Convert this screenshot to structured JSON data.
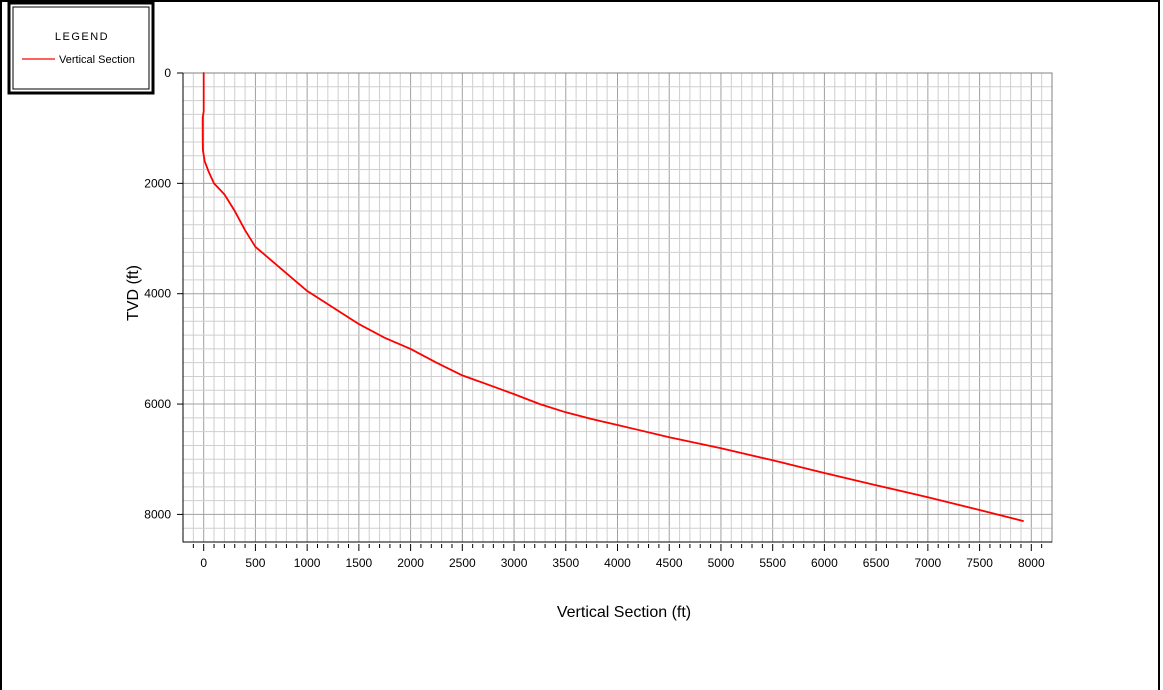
{
  "chart_data": {
    "type": "line",
    "xlabel": "Vertical Section (ft)",
    "ylabel": "TVD (ft)",
    "xlim": [
      -200,
      8200
    ],
    "ylim": [
      0,
      8500
    ],
    "y_inverted": true,
    "grid": true,
    "legend": {
      "title": "LEGEND",
      "placement": "top-left"
    },
    "xticks": [
      0,
      500,
      1000,
      1500,
      2000,
      2500,
      3000,
      3500,
      4000,
      4500,
      5000,
      5500,
      6000,
      6500,
      7000,
      7500,
      8000
    ],
    "yticks": [
      0,
      2000,
      4000,
      6000,
      8000
    ],
    "series": [
      {
        "name": "Vertical Section",
        "color": "#ff0000",
        "points": [
          [
            0,
            0
          ],
          [
            0,
            300
          ],
          [
            0,
            700
          ],
          [
            -10,
            800
          ],
          [
            -10,
            1200
          ],
          [
            -8,
            1400
          ],
          [
            10,
            1600
          ],
          [
            50,
            1800
          ],
          [
            100,
            2000
          ],
          [
            200,
            2200
          ],
          [
            300,
            2500
          ],
          [
            400,
            2850
          ],
          [
            500,
            3150
          ],
          [
            750,
            3550
          ],
          [
            1000,
            3950
          ],
          [
            1250,
            4250
          ],
          [
            1500,
            4550
          ],
          [
            1750,
            4800
          ],
          [
            2000,
            5000
          ],
          [
            2250,
            5250
          ],
          [
            2500,
            5480
          ],
          [
            2750,
            5650
          ],
          [
            3000,
            5820
          ],
          [
            3250,
            6000
          ],
          [
            3500,
            6150
          ],
          [
            3750,
            6270
          ],
          [
            4000,
            6380
          ],
          [
            4500,
            6600
          ],
          [
            5000,
            6800
          ],
          [
            5500,
            7020
          ],
          [
            6000,
            7250
          ],
          [
            6500,
            7470
          ],
          [
            7000,
            7690
          ],
          [
            7500,
            7920
          ],
          [
            7920,
            8120
          ]
        ]
      }
    ]
  }
}
